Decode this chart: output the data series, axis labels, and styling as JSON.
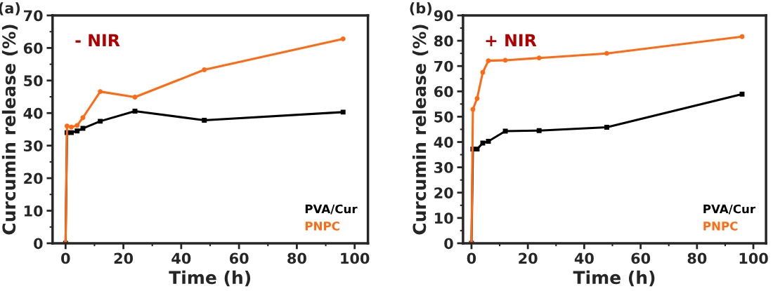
{
  "chart_data": [
    {
      "type": "line",
      "title": "(a)",
      "xlabel": "Time (h)",
      "ylabel": "Curcumin release (%)",
      "annotations": [
        "- NIR"
      ],
      "x": [
        0,
        0.5,
        2,
        4,
        6,
        12,
        24,
        48,
        96
      ],
      "xlim": [
        -4.5,
        104.6
      ],
      "xticks": [
        0,
        20,
        40,
        60,
        80,
        100
      ],
      "ylim": [
        0,
        70
      ],
      "yticks": [
        0,
        10,
        20,
        30,
        40,
        50,
        60,
        70
      ],
      "legend": "bottom right",
      "grid": false,
      "series": [
        {
          "name": "PVA/Cur",
          "color": "#000000",
          "marker": "square",
          "values": [
            0,
            34,
            34,
            34.5,
            35.3,
            37.5,
            40.6,
            37.8,
            40.3
          ]
        },
        {
          "name": "PNPC",
          "color": "#ff6a13",
          "marker": "circle",
          "values": [
            0,
            36,
            35.7,
            36.2,
            38.6,
            46.6,
            44.9,
            53.3,
            62.8
          ]
        }
      ]
    },
    {
      "type": "line",
      "title": "(b)",
      "xlabel": "Time (h)",
      "ylabel": "Curcumin release (%)",
      "annotations": [
        "+ NIR"
      ],
      "x": [
        0,
        0.5,
        2,
        4,
        6,
        12,
        24,
        48,
        96
      ],
      "xlim": [
        -3,
        104.5
      ],
      "xticks": [
        0,
        20,
        40,
        60,
        80,
        100
      ],
      "ylim": [
        0,
        90
      ],
      "yticks": [
        0,
        10,
        20,
        30,
        40,
        50,
        60,
        70,
        80,
        90
      ],
      "legend": "bottom right",
      "grid": false,
      "series": [
        {
          "name": "PVA/Cur",
          "color": "#000000",
          "marker": "square",
          "values": [
            0,
            37.2,
            37.2,
            39.6,
            40.3,
            44.3,
            44.5,
            45.8,
            58.9
          ]
        },
        {
          "name": "PNPC",
          "color": "#ff6a13",
          "marker": "circle",
          "values": [
            0,
            52.9,
            57.2,
            67.5,
            72.1,
            72.3,
            73.2,
            75,
            81.6
          ]
        }
      ]
    }
  ]
}
